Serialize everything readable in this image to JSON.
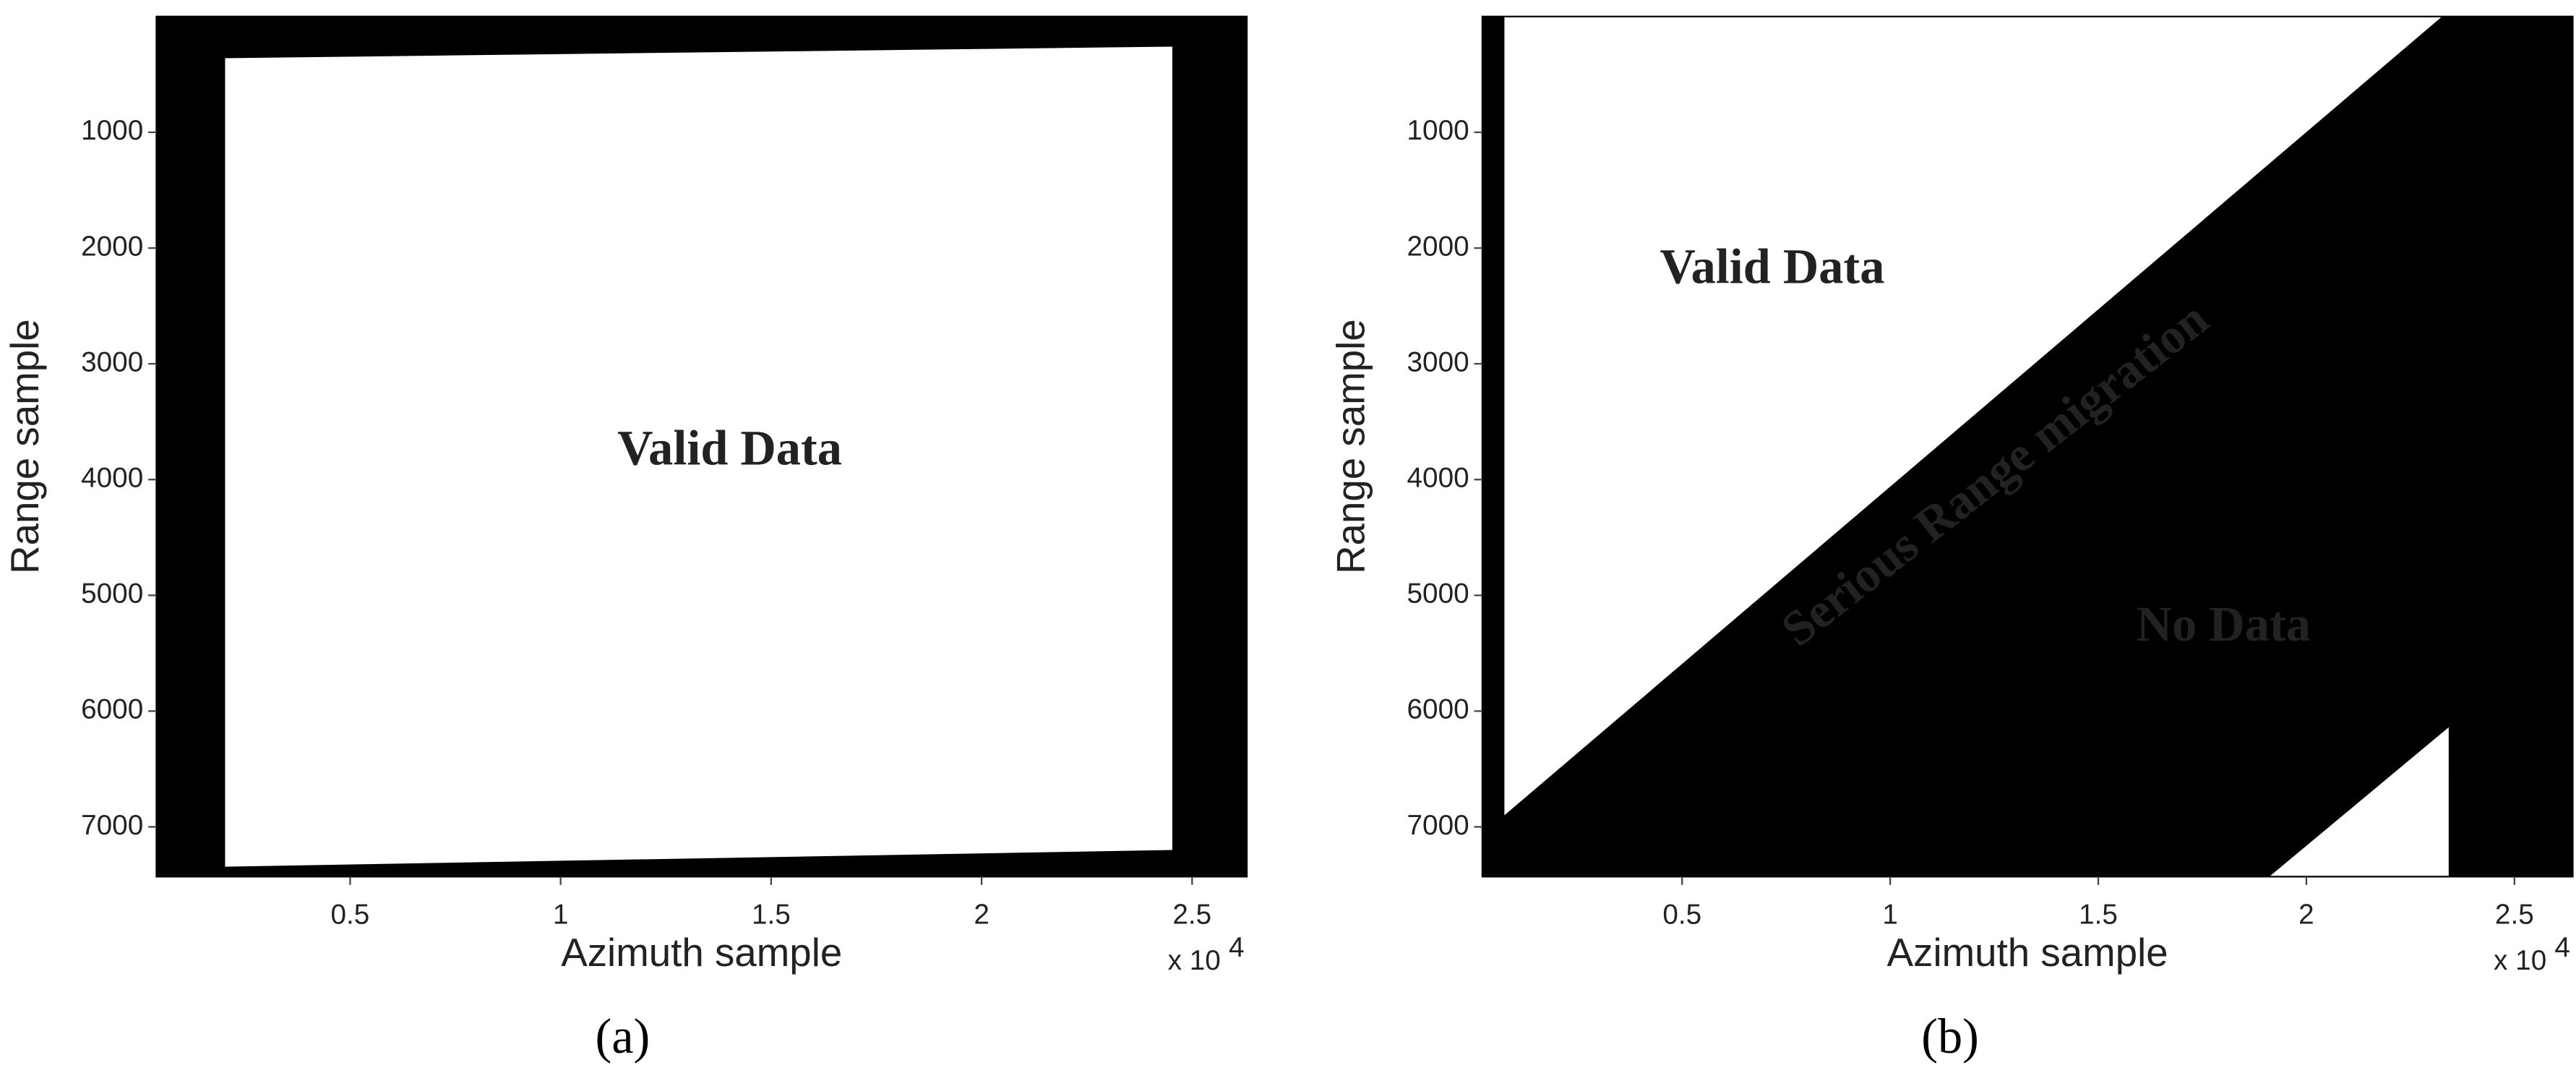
{
  "chart_data": [
    {
      "type": "mask",
      "caption": "(a)",
      "background": "#000000",
      "xlabel": "Azimuth sample",
      "ylabel": "Range sample",
      "x_multiplier": "x 10",
      "x_multiplier_exp": "4",
      "xlim": [
        0.04,
        2.63
      ],
      "xticks": [
        0.5,
        1,
        1.5,
        2,
        2.5
      ],
      "ylim": [
        7430,
        0
      ],
      "yticks": [
        1000,
        2000,
        3000,
        4000,
        5000,
        6000,
        7000
      ],
      "regions": [
        {
          "color": "#ffffff",
          "x": [
            0.203,
            2.453,
            2.453,
            0.203
          ],
          "y": [
            360,
            260,
            7200,
            7344
          ]
        }
      ],
      "annotations": [
        {
          "text": "Valid Data",
          "color": "#1ab4dc"
        }
      ]
    },
    {
      "type": "mask",
      "caption": "(b)",
      "background": "#000000",
      "xlabel": "Azimuth sample",
      "ylabel": "Range sample",
      "x_multiplier": "x 10",
      "x_multiplier_exp": "4",
      "xlim": [
        0.02,
        2.64
      ],
      "xticks": [
        0.5,
        1,
        1.5,
        2,
        2.5
      ],
      "ylim": [
        7430,
        0
      ],
      "yticks": [
        1000,
        2000,
        3000,
        4000,
        5000,
        6000,
        7000
      ],
      "regions": [
        {
          "color": "#ffffff",
          "x": [
            0.073,
            2.326,
            0.073
          ],
          "y": [
            0,
            0,
            6900
          ]
        },
        {
          "color": "#ffffff",
          "x": [
            1.911,
            2.342,
            2.342
          ],
          "y": [
            7430,
            6140,
            7430
          ]
        }
      ],
      "annotations": [
        {
          "text": "Valid Data",
          "color": "#1ab4dc"
        },
        {
          "text": "Serious Range migration",
          "color": "#f2e600"
        },
        {
          "text": "No Data",
          "color": "#1a9ad8"
        }
      ]
    }
  ]
}
